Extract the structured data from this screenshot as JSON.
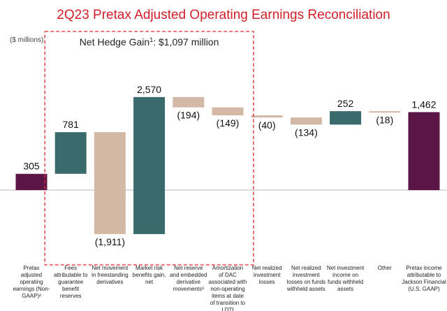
{
  "chart_data": {
    "type": "bar",
    "subtype": "waterfall",
    "title": "2Q23 Pretax Adjusted Operating Earnings Reconciliation",
    "unit_label": "($ millions)",
    "annotation": {
      "text_main": "Net Hedge Gain",
      "superscript": "1",
      "text_rest": ": $1,097 million"
    },
    "ylim": [
      -2000,
      2700
    ],
    "colors": {
      "title": "#d11f2a",
      "total": "#5c1547",
      "positive": "#3b6a6c",
      "negative": "#d3b9a5",
      "bracket": "#e0292f",
      "zero_line": "#b5b5b5"
    },
    "bars": [
      {
        "label": [
          "Pretax",
          "adjusted",
          "operating",
          "earnings (Non-",
          "GAAP)²"
        ],
        "value": 305,
        "base": 0,
        "kind": "total",
        "display": "305"
      },
      {
        "label": [
          "Fees",
          "attributable to",
          "guarantee",
          "benefit",
          "reserves"
        ],
        "value": 781,
        "base": 305,
        "kind": "positive",
        "display": "781"
      },
      {
        "label": [
          "Net movement",
          "in freestanding",
          "derivatives"
        ],
        "value": -1911,
        "base": 1086,
        "kind": "negative",
        "display": "(1,911)"
      },
      {
        "label": [
          "Market risk",
          "benefits gain,",
          "net"
        ],
        "value": 2570,
        "base": -825,
        "kind": "positive",
        "display": "2,570"
      },
      {
        "label": [
          "Net reserve",
          "and embedded",
          "derivative",
          "movements³"
        ],
        "value": -194,
        "base": 1745,
        "kind": "negative",
        "display": "(194)"
      },
      {
        "label": [
          "Amortization",
          "of DAC",
          "associated with",
          "non-operating",
          "items at date",
          "of transition to",
          "LDTI"
        ],
        "value": -149,
        "base": 1551,
        "kind": "negative",
        "display": "(149)"
      },
      {
        "label": [
          "Net realized",
          "investment",
          "losses"
        ],
        "value": -40,
        "base": 1402,
        "kind": "negative",
        "display": "(40)"
      },
      {
        "label": [
          "Net realized",
          "investment",
          "losses on funds",
          "withheld assets"
        ],
        "value": -134,
        "base": 1362,
        "kind": "negative",
        "display": "(134)"
      },
      {
        "label": [
          "Net investment",
          "income on",
          "funds withheld",
          "assets"
        ],
        "value": 252,
        "base": 1228,
        "kind": "positive",
        "display": "252"
      },
      {
        "label": [
          "Other"
        ],
        "value": -18,
        "base": 1480,
        "kind": "negative",
        "display": "(18)"
      },
      {
        "label": [
          "Pretax income",
          "attributable to",
          "Jackson Financial",
          "(U.S. GAAP)"
        ],
        "value": 1462,
        "base": 0,
        "kind": "total",
        "display": "1,462"
      }
    ]
  }
}
